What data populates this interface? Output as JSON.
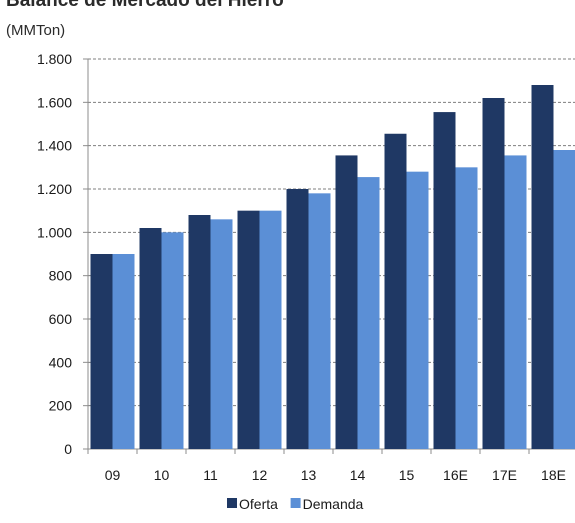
{
  "chart_data": {
    "type": "bar",
    "title": "Balance de Mercado del Hierro",
    "subtitle": "(MMTon)",
    "categories": [
      "09",
      "10",
      "11",
      "12",
      "13",
      "14",
      "15",
      "16E",
      "17E",
      "18E"
    ],
    "series": [
      {
        "name": "Oferta",
        "color": "#1f3864",
        "values": [
          900,
          1020,
          1080,
          1100,
          1200,
          1355,
          1455,
          1555,
          1620,
          1680
        ]
      },
      {
        "name": "Demanda",
        "color": "#5b8fd6",
        "values": [
          900,
          1000,
          1060,
          1100,
          1180,
          1255,
          1280,
          1300,
          1355,
          1380
        ]
      }
    ],
    "ylim": [
      0,
      1800
    ],
    "yticks": [
      0,
      200,
      400,
      600,
      800,
      1000,
      1200,
      1400,
      1600,
      1800
    ],
    "ytick_labels": [
      "0",
      "200",
      "400",
      "600",
      "800",
      "1.000",
      "1.200",
      "1.400",
      "1.600",
      "1.800"
    ],
    "grid": true,
    "legend": "bottom-center"
  }
}
